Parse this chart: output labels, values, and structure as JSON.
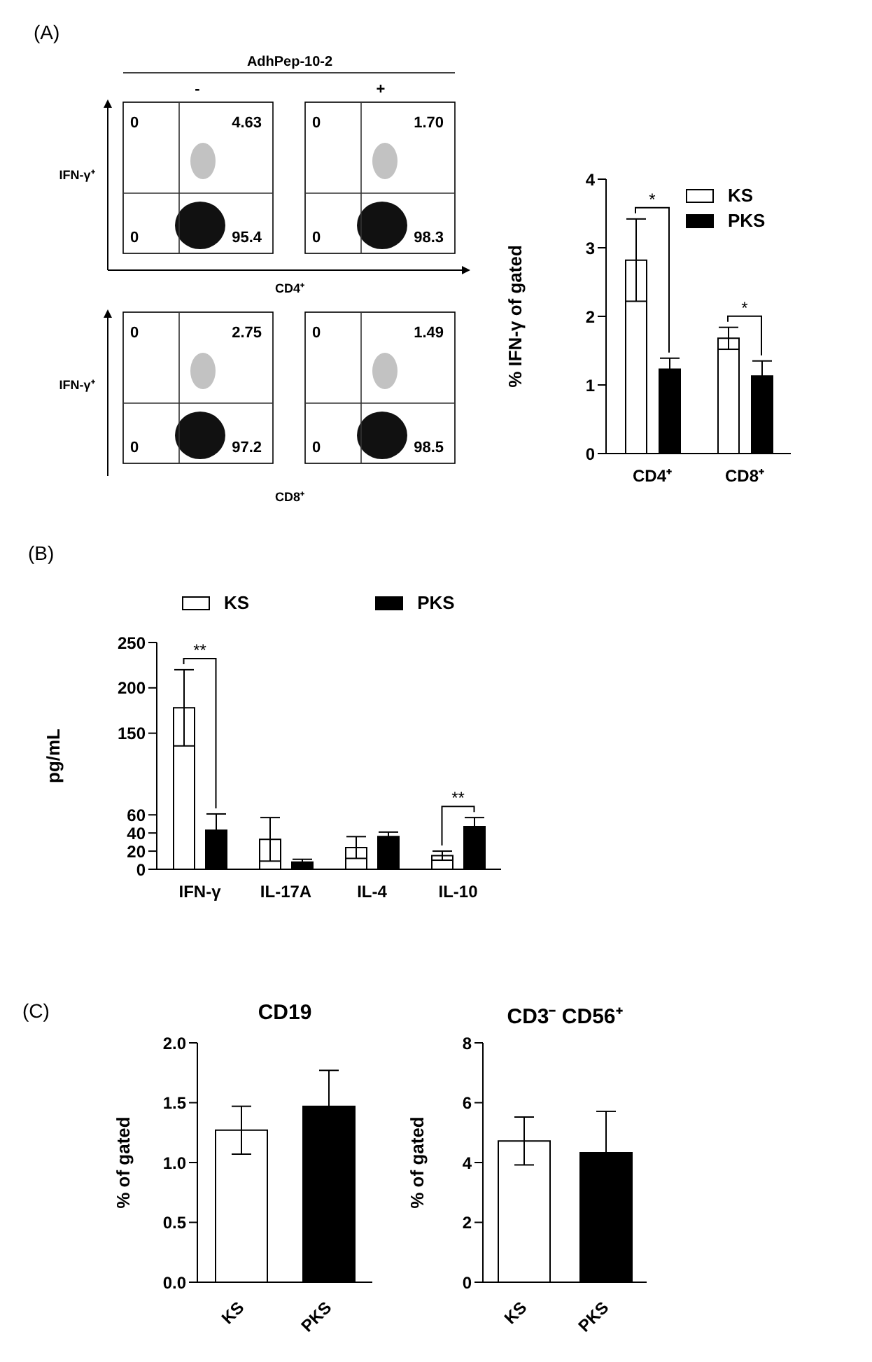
{
  "chart_data": [
    {
      "type": "other",
      "title": "AdhPep-10-2",
      "annotations": [
        "(A)",
        "-",
        "+",
        "IFN-γ⁺",
        "CD4⁺",
        "IFN-γ⁺",
        "CD8⁺",
        "0",
        "4.63",
        "0",
        "95.4",
        "0",
        "1.70",
        "0",
        "98.3",
        "0",
        "2.75",
        "0",
        "97.2",
        "0",
        "1.49",
        "0",
        "98.5"
      ]
    },
    {
      "type": "bar",
      "categories": [
        "CD4⁺",
        "CD8⁺"
      ],
      "ylabel": "% IFN-γ of gated",
      "ylim": [
        0,
        4
      ],
      "yticks": [
        0,
        1,
        2,
        3,
        4
      ],
      "legend": "top right",
      "series": [
        {
          "name": "KS",
          "color": "#ffffff",
          "values": [
            2.82,
            1.68
          ],
          "errors": [
            0.6,
            0.16
          ]
        },
        {
          "name": "PKS",
          "color": "#000000",
          "values": [
            1.23,
            1.13
          ],
          "errors": [
            0.16,
            0.22
          ]
        }
      ],
      "annotations": [
        "*",
        "*"
      ]
    },
    {
      "type": "bar",
      "categories": [
        "IFN-γ",
        "IL-17A",
        "IL-4",
        "IL-10"
      ],
      "ylabel": "pg/mL",
      "ylim": [
        0,
        250
      ],
      "yticks": [
        0,
        20,
        40,
        60,
        150,
        200,
        250
      ],
      "legend": "top",
      "series": [
        {
          "name": "KS",
          "color": "#ffffff",
          "values": [
            178,
            33,
            24,
            15
          ],
          "errors": [
            42,
            24,
            12,
            5
          ]
        },
        {
          "name": "PKS",
          "color": "#000000",
          "values": [
            43,
            8,
            36,
            47
          ],
          "errors": [
            18,
            3,
            5,
            10
          ]
        }
      ],
      "annotations": [
        "(B)",
        "**",
        "**"
      ]
    },
    {
      "type": "bar",
      "title": "CD19",
      "categories": [
        "KS",
        "PKS"
      ],
      "values": [
        1.27,
        1.47
      ],
      "errors": [
        0.2,
        0.3
      ],
      "colors": [
        "#ffffff",
        "#000000"
      ],
      "ylabel": "% of gated",
      "ylim": [
        0,
        2
      ],
      "yticks": [
        {
          "value": 0,
          "label": "0.0"
        },
        {
          "value": 0.5,
          "label": "0.5"
        },
        {
          "value": 1,
          "label": "1.0"
        },
        {
          "value": 1.5,
          "label": "1.5"
        },
        {
          "value": 2,
          "label": "2.0"
        }
      ],
      "annotations": [
        "(C)"
      ]
    },
    {
      "type": "bar",
      "title": "CD3⁻ CD56⁺",
      "categories": [
        "KS",
        "PKS"
      ],
      "values": [
        4.72,
        4.33
      ],
      "errors": [
        0.8,
        1.38
      ],
      "colors": [
        "#ffffff",
        "#000000"
      ],
      "ylabel": "% of gated",
      "ylim": [
        0,
        8
      ],
      "yticks": [
        0,
        2,
        4,
        6,
        8
      ]
    }
  ]
}
